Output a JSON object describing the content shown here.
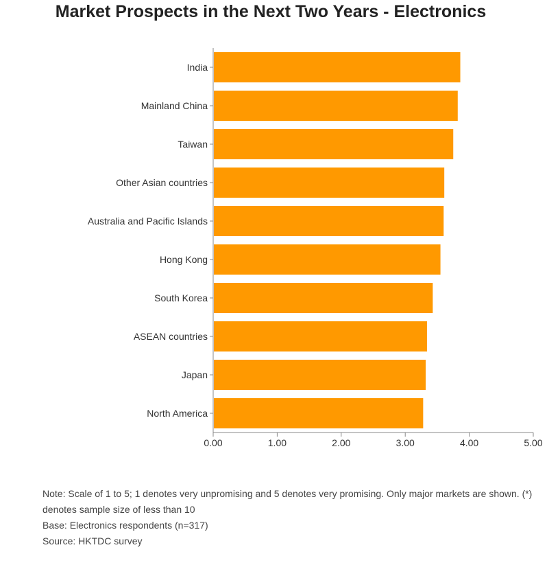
{
  "chart_data": {
    "type": "bar",
    "orientation": "horizontal",
    "title": "Market Prospects in the Next Two Years - Electronics",
    "categories": [
      "India",
      "Mainland China",
      "Taiwan",
      "Other Asian countries",
      "Australia and Pacific Islands",
      "Hong Kong",
      "South Korea",
      "ASEAN countries",
      "Japan",
      "North America"
    ],
    "values": [
      3.86,
      3.82,
      3.75,
      3.61,
      3.6,
      3.55,
      3.43,
      3.34,
      3.32,
      3.28
    ],
    "xlim": [
      0,
      5
    ],
    "xticks": [
      "0.00",
      "1.00",
      "2.00",
      "3.00",
      "4.00",
      "5.00"
    ],
    "xlabel": "",
    "ylabel": "",
    "grid": false,
    "bar_color": "#ff9900"
  },
  "notes": {
    "line1": "Note: Scale of 1 to 5; 1 denotes very unpromising and 5 denotes very promising. Only major markets are shown. (*) denotes sample size of less than 10",
    "line2": "Base: Electronics respondents (n=317)",
    "line3": "Source: HKTDC survey"
  },
  "colors": {
    "bar": "#ff9900",
    "axis": "#888888",
    "text": "#333333"
  }
}
